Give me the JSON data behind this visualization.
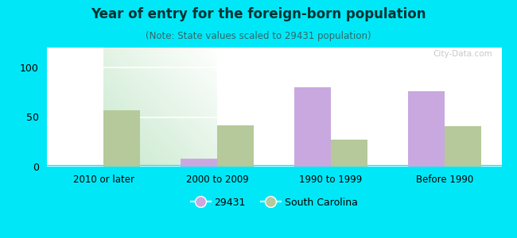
{
  "title": "Year of entry for the foreign-born population",
  "subtitle": "(Note: State values scaled to 29431 population)",
  "categories": [
    "2010 or later",
    "2000 to 2009",
    "1990 to 1999",
    "Before 1990"
  ],
  "values_29431": [
    0,
    8,
    80,
    76
  ],
  "values_sc": [
    57,
    42,
    27,
    41
  ],
  "color_29431": "#c9a8e0",
  "color_sc": "#b5c99a",
  "background_outer": "#00e8f8",
  "ylim": [
    0,
    120
  ],
  "yticks": [
    0,
    50,
    100
  ],
  "bar_width": 0.32,
  "legend_label_29431": "29431",
  "legend_label_sc": "South Carolina",
  "watermark": "City-Data.com",
  "title_color": "#003333",
  "subtitle_color": "#336666"
}
